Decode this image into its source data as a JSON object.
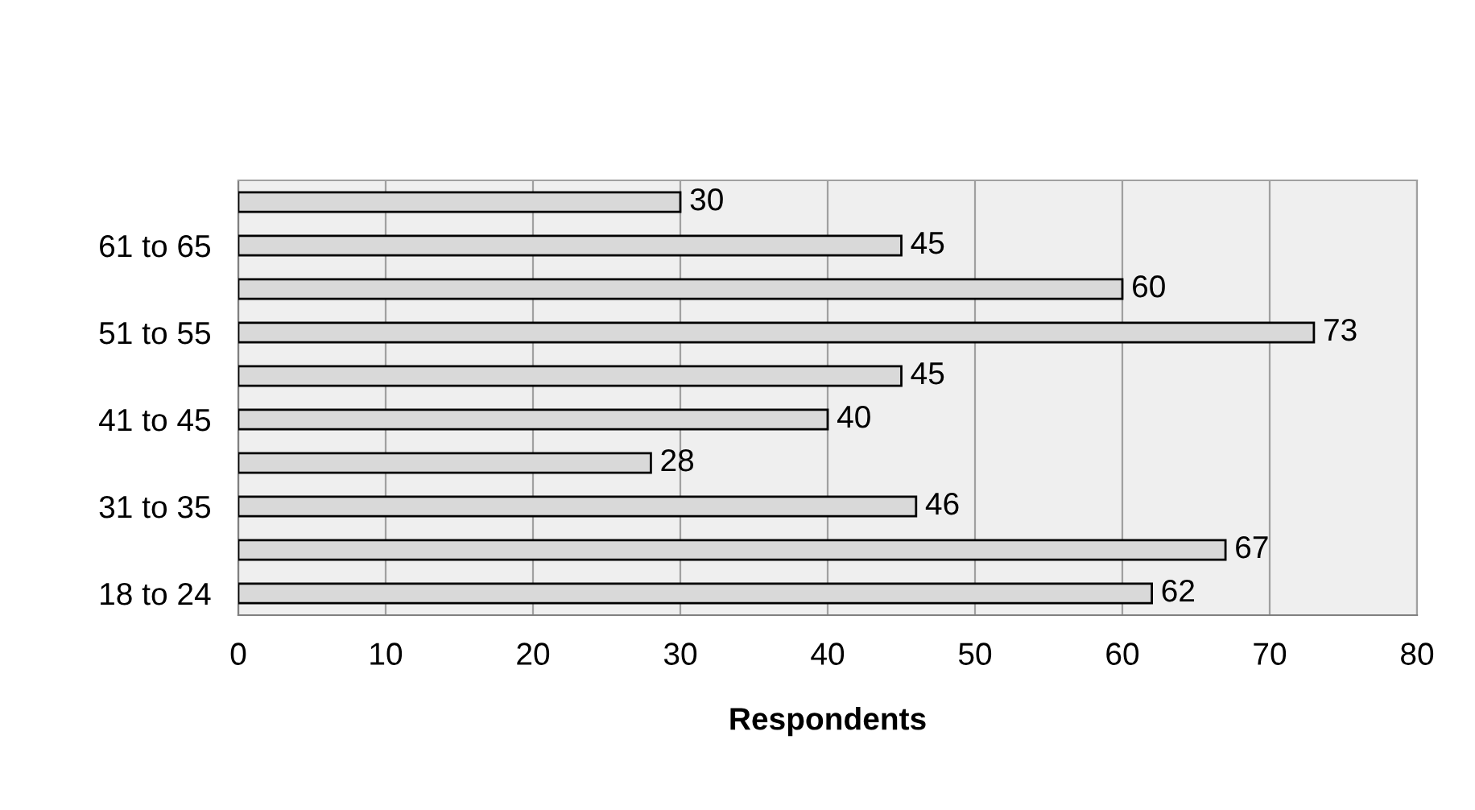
{
  "chart_data": {
    "type": "bar",
    "orientation": "horizontal",
    "categories": [
      null,
      "61 to 65",
      null,
      "51 to 55",
      null,
      "41 to 45",
      null,
      "31 to 35",
      null,
      "18 to 24"
    ],
    "values": [
      30,
      45,
      60,
      73,
      45,
      40,
      28,
      46,
      67,
      62
    ],
    "color": "#d9d9d9",
    "xlabel": "Respondents",
    "xlim": [
      0,
      80
    ],
    "xticks": [
      0,
      10,
      20,
      30,
      40,
      50,
      60,
      70,
      80
    ],
    "grid": "x",
    "data_labels": true
  }
}
